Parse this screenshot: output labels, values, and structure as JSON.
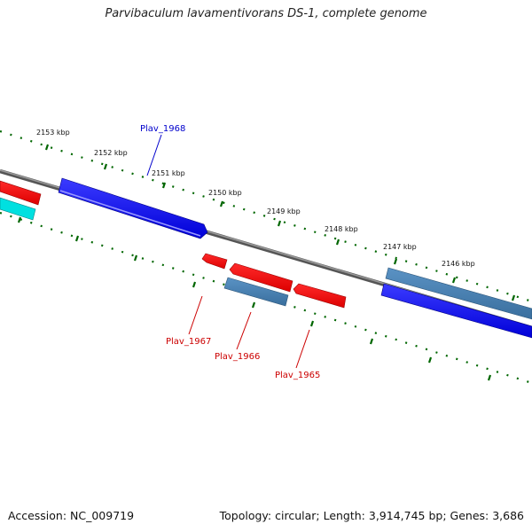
{
  "title": "Parvibaculum lavamentivorans DS-1, complete genome",
  "footer": {
    "accession": "Accession: NC_009719",
    "topology": "Topology: circular; Length: 3,914,745 bp; Genes: 3,686"
  },
  "ticks": [
    "2153 kbp",
    "2152 kbp",
    "2151 kbp",
    "2150 kbp",
    "2149 kbp",
    "2148 kbp",
    "2147 kbp",
    "2146 kbp"
  ],
  "gene_labels": {
    "plav_1968": "Plav_1968",
    "plav_1967": "Plav_1967",
    "plav_1966": "Plav_1966",
    "plav_1965": "Plav_1965"
  },
  "colors": {
    "backbone": "#808080",
    "tick": "#006600",
    "blue": "#0000ee",
    "steel": "#4682b4",
    "red": "#ee0000",
    "cyan": "#00dddd",
    "label_blue": "#0000cc",
    "label_red": "#cc0000"
  }
}
